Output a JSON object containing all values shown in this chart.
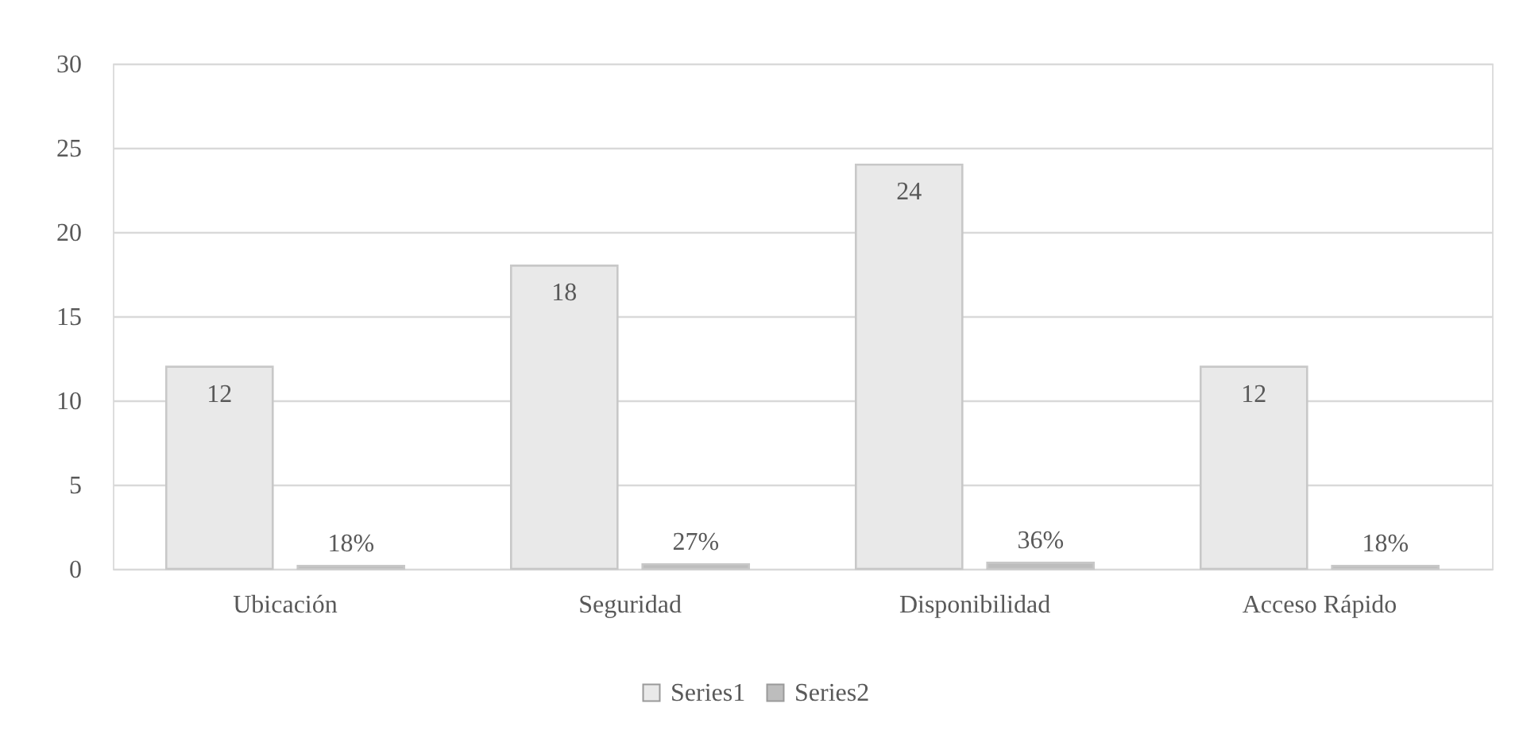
{
  "chart_data": {
    "type": "bar",
    "categories": [
      "Ubicación",
      "Seguridad",
      "Disponibilidad",
      "Acceso Rápido"
    ],
    "series": [
      {
        "name": "Series1",
        "color": "#e9e9e9",
        "values": [
          12,
          18,
          24,
          12
        ],
        "value_labels": [
          "12",
          "18",
          "24",
          "12"
        ]
      },
      {
        "name": "Series2",
        "color": "#bdbdbd",
        "values": [
          0.18,
          0.27,
          0.36,
          0.18
        ],
        "value_labels": [
          "18%",
          "27%",
          "36%",
          "18%"
        ]
      }
    ],
    "ylim": [
      0,
      30
    ],
    "yticks": [
      0,
      5,
      10,
      15,
      20,
      25,
      30
    ],
    "grid": "y",
    "legend": "bottom"
  }
}
